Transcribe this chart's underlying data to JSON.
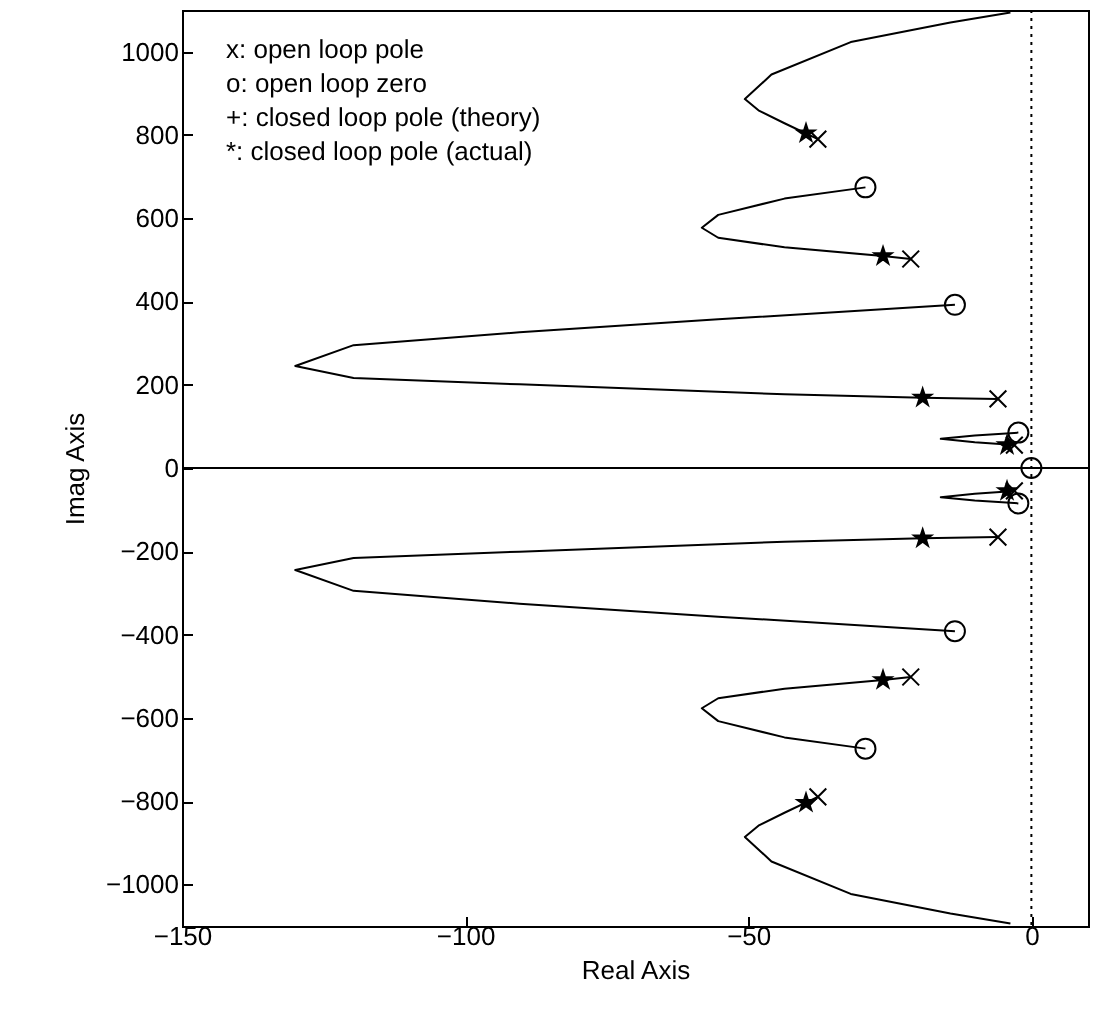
{
  "chart_data": {
    "type": "line",
    "xlabel": "Real Axis",
    "ylabel": "Imag Axis",
    "xlim": [
      -150,
      10
    ],
    "ylim": [
      -1100,
      1100
    ],
    "xticks": [
      -150,
      -100,
      -50,
      0
    ],
    "yticks": [
      -1000,
      -800,
      -600,
      -400,
      -200,
      0,
      200,
      400,
      600,
      800,
      1000
    ],
    "grid": false,
    "annotations": [
      "x: open loop pole",
      "o: open loop zero",
      "+: closed loop pole (theory)",
      "*: closed loop pole (actual)"
    ],
    "ref_lines": [
      {
        "axis": "y",
        "value": 0,
        "color": "#000000",
        "line_style": "solid"
      },
      {
        "axis": "x",
        "value": 0,
        "color": "#000000",
        "line_style": "dotted"
      }
    ],
    "series": [
      {
        "color": "#000000",
        "line_style": "solid",
        "x": [
          -37.7,
          -43.6,
          -48.2,
          -50.6,
          -45.9,
          -31.9,
          -14.3,
          -3.7
        ],
        "values": [
          790,
          828,
          859,
          886,
          945,
          1023,
          1070,
          1094
        ]
      },
      {
        "color": "#000000",
        "line_style": "solid",
        "x": [
          -21.3,
          -26.2,
          -43.6,
          -55.3,
          -58.2,
          -55.3,
          -43.6,
          -29.3
        ],
        "values": [
          502,
          509,
          530,
          553,
          577,
          608,
          647,
          674
        ]
      },
      {
        "color": "#000000",
        "line_style": "solid",
        "x": [
          -5.9,
          -19.2,
          -43.6,
          -90.4,
          -119.7,
          -130,
          -119.7,
          -90.4,
          -55.3,
          -13.5
        ],
        "values": [
          166,
          169,
          177,
          201,
          216,
          245,
          295,
          326,
          357,
          392
        ]
      },
      {
        "color": "#000000",
        "line_style": "solid",
        "x": [
          -3,
          -10,
          -16,
          -10,
          -2.3
        ],
        "values": [
          55,
          62,
          70,
          78,
          85
        ]
      },
      {
        "color": "#000000",
        "line_style": "solid",
        "x": [
          -3,
          -10,
          -16,
          -10,
          -2.3
        ],
        "values": [
          -55,
          -62,
          -70,
          -78,
          -85
        ]
      },
      {
        "color": "#000000",
        "line_style": "solid",
        "x": [
          -5.9,
          -19.2,
          -43.6,
          -90.4,
          -119.7,
          -130,
          -119.7,
          -90.4,
          -55.3,
          -13.5
        ],
        "values": [
          -166,
          -169,
          -177,
          -201,
          -216,
          -245,
          -295,
          -326,
          -357,
          -392
        ]
      },
      {
        "color": "#000000",
        "line_style": "solid",
        "x": [
          -21.3,
          -26.2,
          -43.6,
          -55.3,
          -58.2,
          -55.3,
          -43.6,
          -29.3
        ],
        "values": [
          -502,
          -509,
          -530,
          -553,
          -577,
          -608,
          -647,
          -674
        ]
      },
      {
        "color": "#000000",
        "line_style": "solid",
        "x": [
          -37.7,
          -43.6,
          -48.2,
          -50.6,
          -45.9,
          -31.9,
          -14.3,
          -3.7
        ],
        "values": [
          -790,
          -828,
          -859,
          -886,
          -945,
          -1023,
          -1070,
          -1094
        ]
      },
      {
        "type": "scatter",
        "color": "#000000",
        "marker": "cross",
        "x": [
          -37.7,
          -21.3,
          -5.9,
          -3,
          -3,
          -5.9,
          -21.3,
          -37.7
        ],
        "values": [
          790,
          502,
          166,
          55,
          -55,
          -166,
          -502,
          -790
        ]
      },
      {
        "type": "scatter",
        "color": "#000000",
        "marker": "circle",
        "x": [
          -29.3,
          -13.5,
          -2.3,
          0,
          -2.3,
          -13.5,
          -29.3
        ],
        "values": [
          674,
          392,
          85,
          0,
          -85,
          -392,
          -674
        ]
      },
      {
        "type": "scatter",
        "color": "#000000",
        "marker": "star",
        "x": [
          -39.8,
          -26.2,
          -19.2,
          -4.3,
          -4.3,
          -19.2,
          -26.2,
          -39.8
        ],
        "values": [
          804,
          509,
          169,
          55,
          -55,
          -169,
          -509,
          -804
        ]
      }
    ]
  }
}
